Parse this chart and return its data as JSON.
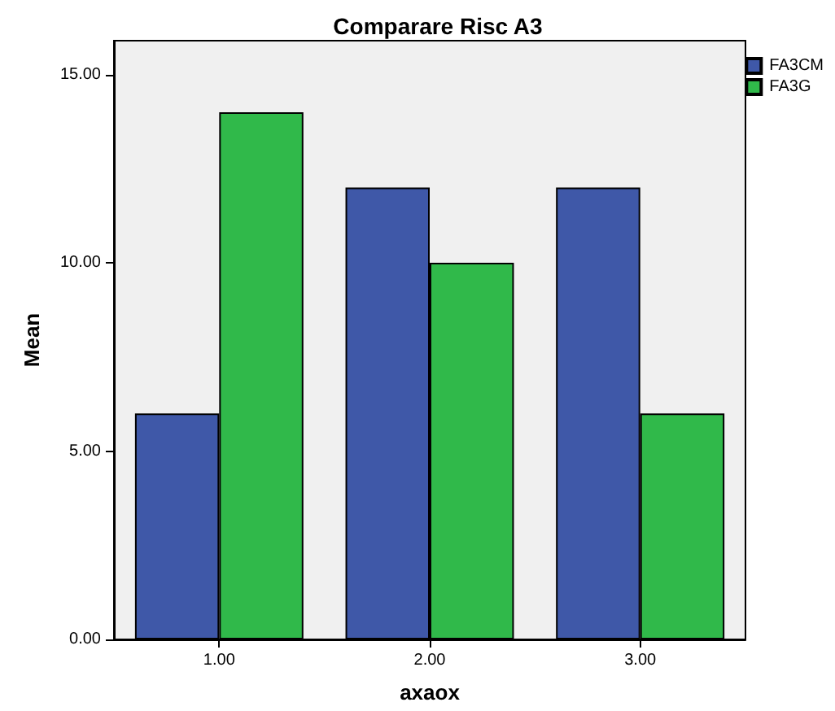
{
  "chart_data": {
    "type": "bar",
    "title": "Comparare Risc A3",
    "xlabel": "axaox",
    "ylabel": "Mean",
    "categories": [
      "1.00",
      "2.00",
      "3.00"
    ],
    "series": [
      {
        "name": "FA3CM",
        "color": "#3f58a8",
        "values": [
          6,
          12,
          12
        ]
      },
      {
        "name": "FA3G",
        "color": "#30b94a",
        "values": [
          14,
          10,
          6
        ]
      }
    ],
    "ylim": [
      0,
      15.9
    ],
    "yticks": [
      {
        "value": 0,
        "label": "0.00"
      },
      {
        "value": 5,
        "label": "5.00"
      },
      {
        "value": 10,
        "label": "10.00"
      },
      {
        "value": 15,
        "label": "15.00"
      }
    ],
    "grid": false,
    "legend": "top right"
  }
}
